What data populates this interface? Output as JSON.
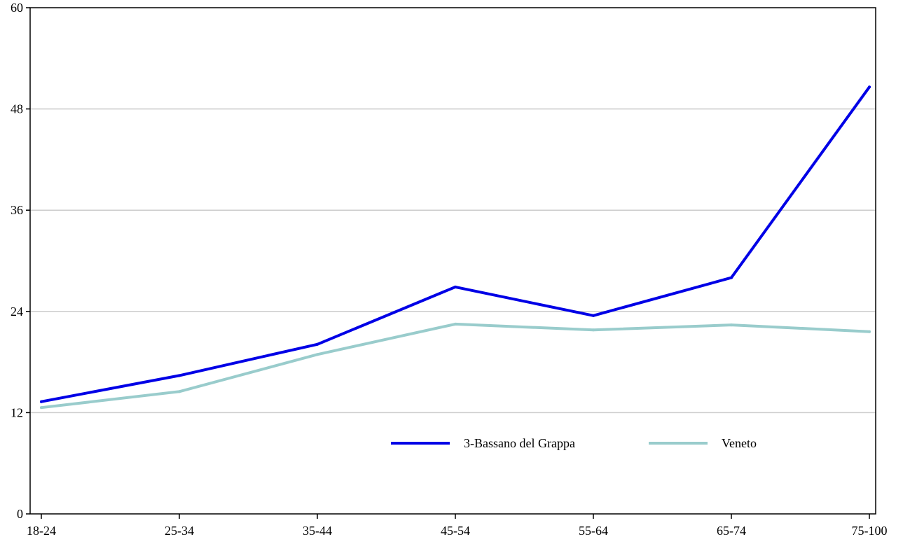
{
  "chart_data": {
    "type": "line",
    "title": "",
    "xlabel": "",
    "ylabel": "",
    "categories": [
      "18-24",
      "25-34",
      "35-44",
      "45-54",
      "55-64",
      "65-74",
      "75-100"
    ],
    "ylim": [
      0,
      60
    ],
    "yticks": [
      0,
      12,
      24,
      36,
      48,
      60
    ],
    "grid": true,
    "legend_position": "bottom-center",
    "series": [
      {
        "name": "3-Bassano del Grappa",
        "color": "#0000e6",
        "values": [
          13.3,
          16.4,
          20.1,
          26.9,
          23.5,
          28.0,
          50.6
        ]
      },
      {
        "name": "Veneto",
        "color": "#99cccc",
        "values": [
          12.6,
          14.5,
          18.9,
          22.5,
          21.8,
          22.4,
          21.6
        ]
      }
    ]
  }
}
